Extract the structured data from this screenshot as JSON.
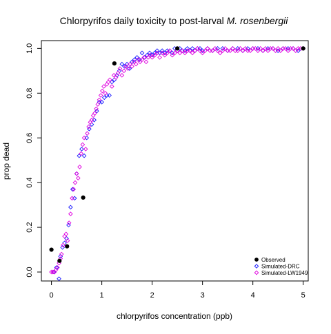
{
  "chart_data": {
    "type": "scatter",
    "title_main": "Chlorpyrifos daily toxicity to post-larval ",
    "title_italic": "M. rosenbergii",
    "xlabel": "chlorpyrifos concentration (ppb)",
    "ylabel": "prop dead",
    "xlim": [
      -0.2,
      5.1
    ],
    "ylim": [
      -0.04,
      1.035
    ],
    "x_ticks": [
      0,
      1,
      2,
      3,
      4,
      5
    ],
    "y_ticks": [
      0.0,
      0.2,
      0.4,
      0.6,
      0.8,
      1.0
    ],
    "x_tick_labels": [
      "0",
      "1",
      "2",
      "3",
      "4",
      "5"
    ],
    "y_tick_labels": [
      "0.0",
      "0.2",
      "0.4",
      "0.6",
      "0.8",
      "1.0"
    ],
    "grid": false,
    "legend_position": "bottom-right",
    "series": [
      {
        "name": "Observed",
        "color": "#000000",
        "marker": "filled-circle",
        "x": [
          0,
          0.16,
          0.31,
          0.63,
          1.25,
          2.5,
          5.0
        ],
        "y": [
          0.1,
          0.05,
          0.115,
          0.333,
          0.933,
          1.0,
          1.0
        ]
      },
      {
        "name": "Simulated-DRC",
        "color": "#1a1aff",
        "marker": "open-diamond",
        "x": [
          0.05,
          0.1,
          0.15,
          0.18,
          0.22,
          0.26,
          0.3,
          0.34,
          0.38,
          0.42,
          0.46,
          0.5,
          0.55,
          0.6,
          0.65,
          0.7,
          0.75,
          0.8,
          0.85,
          0.9,
          0.95,
          1.0,
          1.05,
          1.1,
          1.15,
          1.2,
          1.25,
          1.3,
          1.35,
          1.4,
          1.45,
          1.5,
          1.55,
          1.6,
          1.65,
          1.7,
          1.75,
          1.8,
          1.85,
          1.9,
          1.95,
          2.0,
          2.05,
          2.1,
          2.15,
          2.2,
          2.25,
          2.3,
          2.35,
          2.4,
          2.45,
          2.5,
          2.55,
          2.6,
          2.65,
          2.7,
          2.75,
          2.8,
          2.85,
          2.9,
          2.95,
          3.0,
          3.1,
          3.2,
          3.3,
          3.4,
          3.5,
          3.6,
          3.7,
          3.8,
          3.9,
          4.0,
          4.1,
          4.2,
          4.3,
          4.4,
          4.5,
          4.6,
          4.7,
          4.8,
          4.9,
          5.0
        ],
        "y": [
          0.0,
          0.02,
          -0.03,
          0.07,
          0.11,
          0.13,
          0.15,
          0.21,
          0.29,
          0.37,
          0.33,
          0.44,
          0.52,
          0.55,
          0.52,
          0.6,
          0.64,
          0.66,
          0.68,
          0.72,
          0.76,
          0.76,
          0.78,
          0.79,
          0.79,
          0.85,
          0.86,
          0.88,
          0.9,
          0.93,
          0.92,
          0.93,
          0.91,
          0.94,
          0.95,
          0.96,
          0.95,
          0.98,
          0.96,
          0.97,
          0.98,
          0.97,
          0.98,
          0.99,
          0.98,
          0.99,
          0.98,
          0.99,
          0.99,
          0.98,
          1.0,
          0.99,
          1.0,
          0.99,
          0.99,
          1.0,
          0.99,
          1.0,
          0.99,
          1.0,
          1.0,
          0.99,
          1.0,
          0.99,
          1.0,
          1.0,
          0.99,
          1.0,
          1.0,
          0.99,
          1.0,
          1.0,
          1.0,
          0.99,
          1.0,
          1.0,
          0.99,
          1.0,
          1.0,
          1.0,
          0.99,
          1.0
        ]
      },
      {
        "name": "Simulated-LW1949",
        "color": "#e000e0",
        "marker": "open-diamond",
        "x": [
          0.0,
          0.03,
          0.06,
          0.09,
          0.12,
          0.15,
          0.18,
          0.2,
          0.23,
          0.26,
          0.29,
          0.32,
          0.35,
          0.38,
          0.41,
          0.44,
          0.47,
          0.5,
          0.53,
          0.56,
          0.59,
          0.62,
          0.65,
          0.68,
          0.71,
          0.74,
          0.77,
          0.8,
          0.83,
          0.86,
          0.89,
          0.92,
          0.95,
          0.98,
          1.01,
          1.04,
          1.07,
          1.1,
          1.13,
          1.16,
          1.2,
          1.24,
          1.28,
          1.32,
          1.36,
          1.4,
          1.44,
          1.48,
          1.52,
          1.56,
          1.6,
          1.64,
          1.68,
          1.72,
          1.76,
          1.8,
          1.84,
          1.88,
          1.92,
          1.96,
          2.0,
          2.05,
          2.1,
          2.15,
          2.2,
          2.25,
          2.3,
          2.35,
          2.4,
          2.45,
          2.5,
          2.55,
          2.6,
          2.65,
          2.7,
          2.75,
          2.8,
          2.85,
          2.9,
          2.95,
          3.0,
          3.05,
          3.1,
          3.15,
          3.2,
          3.25,
          3.3,
          3.35,
          3.4,
          3.45,
          3.5,
          3.55,
          3.6,
          3.65,
          3.7,
          3.75,
          3.8,
          3.85,
          3.9,
          3.95,
          4.0,
          4.05,
          4.1,
          4.15,
          4.2,
          4.25,
          4.3,
          4.35,
          4.4,
          4.45,
          4.5,
          4.55,
          4.6,
          4.65,
          4.7,
          4.75,
          4.8,
          4.85,
          4.9,
          4.95,
          5.0
        ],
        "y": [
          0.0,
          0.0,
          0.0,
          0.01,
          0.02,
          0.04,
          0.06,
          0.08,
          0.12,
          0.16,
          0.17,
          0.14,
          0.22,
          0.26,
          0.33,
          0.37,
          0.4,
          0.44,
          0.42,
          0.47,
          0.53,
          0.57,
          0.6,
          0.55,
          0.62,
          0.65,
          0.67,
          0.68,
          0.7,
          0.71,
          0.73,
          0.75,
          0.77,
          0.79,
          0.81,
          0.83,
          0.8,
          0.84,
          0.85,
          0.86,
          0.83,
          0.88,
          0.87,
          0.89,
          0.91,
          0.88,
          0.9,
          0.92,
          0.91,
          0.93,
          0.92,
          0.94,
          0.93,
          0.95,
          0.94,
          0.95,
          0.96,
          0.94,
          0.96,
          0.97,
          0.96,
          0.97,
          0.98,
          0.96,
          0.98,
          0.97,
          0.98,
          0.99,
          0.97,
          0.98,
          0.99,
          0.98,
          0.99,
          0.98,
          0.99,
          0.99,
          0.98,
          0.99,
          1.0,
          0.99,
          0.98,
          0.99,
          1.0,
          0.99,
          0.99,
          1.0,
          0.99,
          0.98,
          0.99,
          1.0,
          0.99,
          0.99,
          1.0,
          0.99,
          0.99,
          1.0,
          0.99,
          1.0,
          0.99,
          0.99,
          1.0,
          1.0,
          0.99,
          1.0,
          0.99,
          1.0,
          0.99,
          1.0,
          1.0,
          0.99,
          1.0,
          0.99,
          1.0,
          1.0,
          0.99,
          1.0,
          1.0,
          0.99,
          1.0,
          1.0,
          1.0
        ]
      }
    ]
  }
}
